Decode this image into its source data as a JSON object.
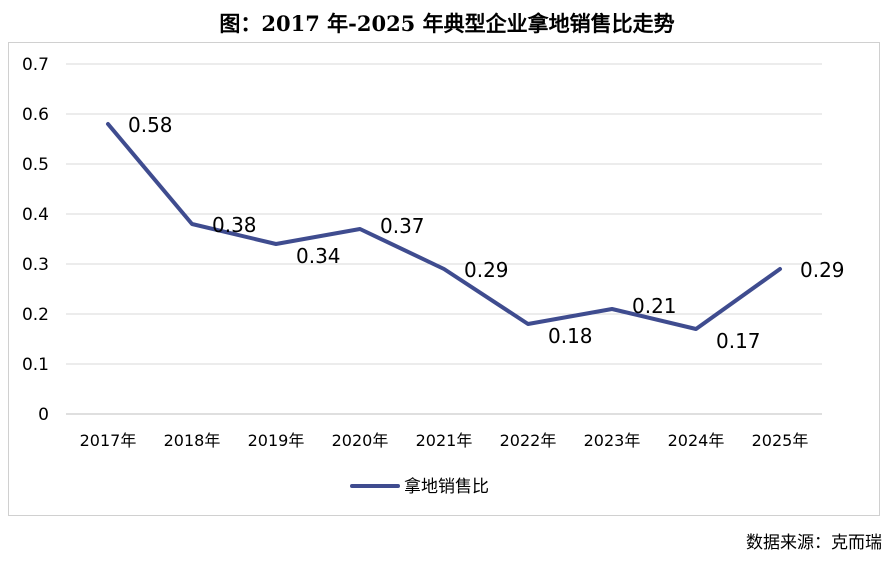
{
  "page": {
    "title": "图：2017 年-2025 年典型企业拿地销售比走势",
    "source": "数据来源：克而瑞"
  },
  "chart_data": {
    "type": "line",
    "title": "图：2017 年-2025 年典型企业拿地销售比走势",
    "xlabel": "",
    "ylabel": "",
    "categories": [
      "2017年",
      "2018年",
      "2019年",
      "2020年",
      "2021年",
      "2022年",
      "2023年",
      "2024年",
      "2025年"
    ],
    "series": [
      {
        "name": "拿地销售比",
        "values": [
          0.58,
          0.38,
          0.34,
          0.37,
          0.29,
          0.18,
          0.21,
          0.17,
          0.29
        ],
        "labels": [
          "0.58",
          "0.38",
          "0.34",
          "0.37",
          "0.29",
          "0.18",
          "0.21",
          "0.17",
          "0.29"
        ],
        "color": "#3f4c8f"
      }
    ],
    "yticks": [
      "0",
      "0.1",
      "0.2",
      "0.3",
      "0.4",
      "0.5",
      "0.6",
      "0.7"
    ],
    "ylim": [
      0,
      0.7
    ],
    "grid": true,
    "legend_position": "bottom"
  }
}
